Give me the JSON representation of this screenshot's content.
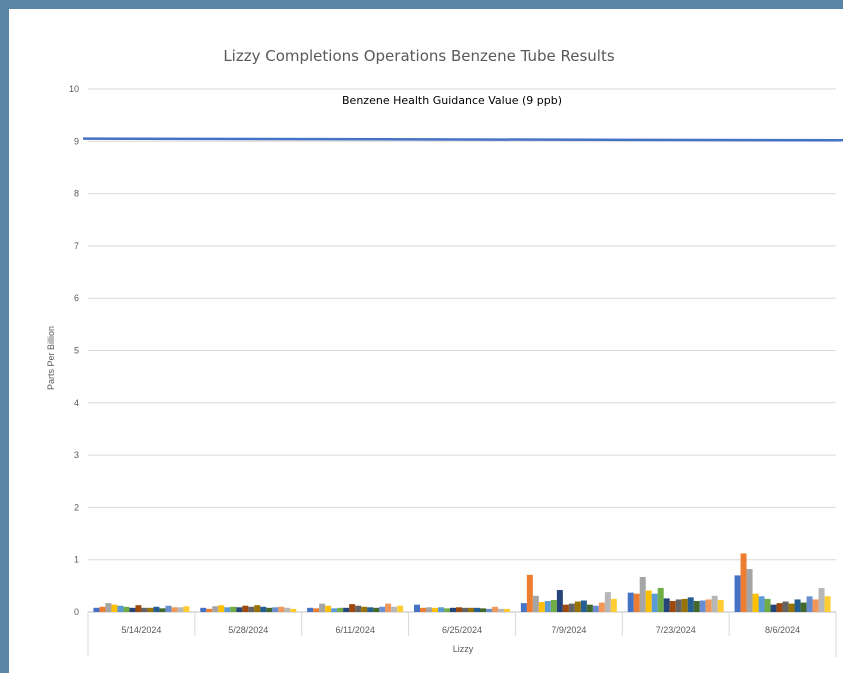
{
  "chart_data": {
    "type": "bar",
    "title": "Lizzy Completions Operations Benzene Tube Results",
    "xlabel": "Lizzy",
    "ylabel": "Parts Per Billion",
    "ylim": [
      0,
      10
    ],
    "yticks": [
      0,
      1,
      2,
      3,
      4,
      5,
      6,
      7,
      8,
      9,
      10
    ],
    "grid": true,
    "legend": "none",
    "categories": [
      "5/14/2024",
      "5/28/2024",
      "6/11/2024",
      "6/25/2024",
      "7/9/2024",
      "7/23/2024",
      "8/6/2024"
    ],
    "series_colors": [
      "#4472c4",
      "#ed7d31",
      "#a5a5a5",
      "#ffc000",
      "#5b9bd5",
      "#70ad47",
      "#264478",
      "#9e480e",
      "#636363",
      "#997300",
      "#255e91",
      "#43682b",
      "#698ed0",
      "#f1975a",
      "#b7b7b7",
      "#ffcd33"
    ],
    "values_by_category": [
      [
        0.08,
        0.1,
        0.17,
        0.14,
        0.12,
        0.1,
        0.08,
        0.13,
        0.08,
        0.08,
        0.1,
        0.07,
        0.12,
        0.09,
        0.09,
        0.11
      ],
      [
        0.08,
        0.06,
        0.11,
        0.13,
        0.09,
        0.1,
        0.09,
        0.12,
        0.1,
        0.13,
        0.1,
        0.08,
        0.09,
        0.1,
        0.08,
        0.06
      ],
      [
        0.08,
        0.07,
        0.16,
        0.12,
        0.07,
        0.08,
        0.08,
        0.15,
        0.12,
        0.1,
        0.09,
        0.08,
        0.1,
        0.16,
        0.1,
        0.12
      ],
      [
        0.14,
        0.08,
        0.09,
        0.08,
        0.09,
        0.07,
        0.08,
        0.09,
        0.08,
        0.08,
        0.08,
        0.07,
        0.06,
        0.1,
        0.06,
        0.06
      ],
      [
        0.17,
        0.71,
        0.31,
        0.19,
        0.21,
        0.23,
        0.42,
        0.14,
        0.16,
        0.2,
        0.22,
        0.14,
        0.12,
        0.18,
        0.38,
        0.25
      ],
      [
        0.37,
        0.35,
        0.67,
        0.41,
        0.35,
        0.46,
        0.26,
        0.21,
        0.24,
        0.25,
        0.28,
        0.21,
        0.22,
        0.24,
        0.31,
        0.23
      ],
      [
        0.7,
        1.12,
        0.82,
        0.35,
        0.3,
        0.25,
        0.14,
        0.17,
        0.2,
        0.16,
        0.24,
        0.18,
        0.3,
        0.24,
        0.46,
        0.3
      ]
    ],
    "reference_line": {
      "label": "Benzene Health Guidance Value (9 ppb)",
      "y_start": 9.05,
      "y_end": 9.02,
      "color": "#4472c4"
    }
  }
}
